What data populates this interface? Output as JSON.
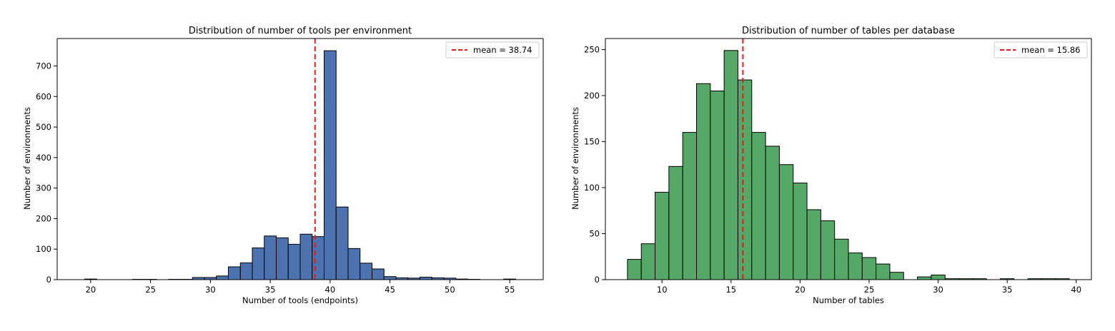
{
  "colors": {
    "bar_left": "#4c72b0",
    "bar_right": "#55a868",
    "bar_edge": "#000000",
    "mean_line": "#e41a1c"
  },
  "chart_data": [
    {
      "type": "bar",
      "title": "Distribution of number of tools per environment",
      "xlabel": "Number of tools (endpoints)",
      "ylabel": "Number of environments",
      "xlim": [
        17.2,
        57.8
      ],
      "ylim": [
        0,
        790
      ],
      "xticks": [
        20,
        25,
        30,
        35,
        40,
        45,
        50,
        55
      ],
      "yticks": [
        0,
        100,
        200,
        300,
        400,
        500,
        600,
        700
      ],
      "bin_width": 1.0,
      "bin_start": 19.5,
      "values": [
        2,
        0,
        0,
        0,
        1,
        1,
        0,
        1,
        1,
        7,
        7,
        12,
        42,
        55,
        104,
        143,
        137,
        116,
        149,
        141,
        750,
        238,
        102,
        54,
        35,
        10,
        6,
        5,
        8,
        6,
        5,
        2,
        1,
        0,
        0,
        2
      ],
      "mean": 38.74,
      "legend": "mean = 38.74",
      "legend_loc": "upper right",
      "grid": false
    },
    {
      "type": "bar",
      "title": "Distribution of number of tables per database",
      "xlabel": "Number of tables",
      "ylabel": "Number of environments",
      "xlim": [
        5.9,
        41.1
      ],
      "ylim": [
        0,
        262
      ],
      "xticks": [
        10,
        15,
        20,
        25,
        30,
        35,
        40
      ],
      "yticks": [
        0,
        50,
        100,
        150,
        200,
        250
      ],
      "bin_width": 1.0,
      "bin_start": 7.5,
      "values": [
        22,
        39,
        95,
        123,
        160,
        213,
        205,
        249,
        217,
        160,
        145,
        125,
        105,
        76,
        64,
        44,
        29,
        24,
        17,
        8,
        0,
        3,
        5,
        1,
        1,
        1,
        0,
        1,
        0,
        1,
        1,
        1
      ],
      "mean": 15.86,
      "legend": "mean = 15.86",
      "legend_loc": "upper right",
      "grid": false
    }
  ]
}
